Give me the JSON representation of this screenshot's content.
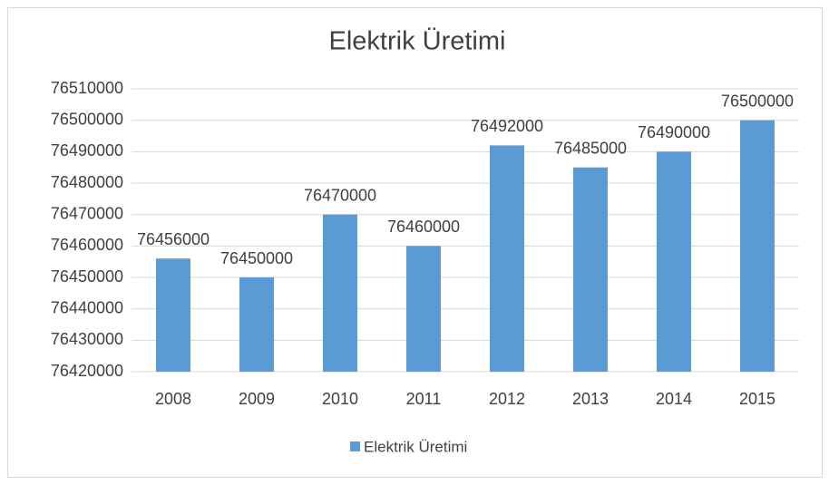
{
  "chart_data": {
    "type": "bar",
    "title": "Elektrik Üretimi",
    "categories": [
      "2008",
      "2009",
      "2010",
      "2011",
      "2012",
      "2013",
      "2014",
      "2015"
    ],
    "series": [
      {
        "name": "Elektrik Üretimi",
        "color": "#5b9bd5",
        "values": [
          76456000,
          76450000,
          76470000,
          76460000,
          76492000,
          76485000,
          76490000,
          76500000
        ]
      }
    ],
    "ylim": [
      76420000,
      76510000
    ],
    "yticks": [
      76420000,
      76430000,
      76440000,
      76450000,
      76460000,
      76470000,
      76480000,
      76490000,
      76500000,
      76510000
    ],
    "grid": true,
    "legend": "bottom"
  }
}
